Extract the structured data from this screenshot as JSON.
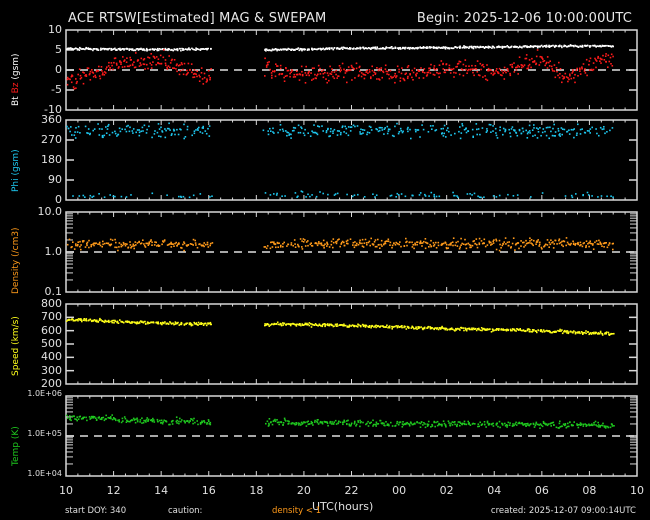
{
  "header": {
    "title": "ACE RTSW[Estimated] MAG & SWEPAM",
    "begin": "Begin: 2025-12-06 10:00:00UTC"
  },
  "footer": {
    "start_doy": "start DOY: 340",
    "caution": "caution:",
    "density_note": "density < 1",
    "created": "created: 2025-12-07 09:00:14UTC",
    "xlabel": "UTC(hours)"
  },
  "colors": {
    "bt": "#ffffff",
    "bz": "#ff1a1a",
    "phi": "#1ec8f0",
    "density": "#ff9a1a",
    "speed": "#ffff1a",
    "temp": "#1ec81e",
    "axis": "#d8d8d8",
    "caution": "#ff9a1a"
  },
  "chart_data": [
    {
      "type": "scatter",
      "panel": "mag",
      "ylabel_parts": [
        "Bt",
        "Bz",
        "(gsm)"
      ],
      "yticks": [
        "10",
        "5",
        "0",
        "-5",
        "-10"
      ],
      "ylim": [
        -10,
        10
      ],
      "reference_line": 0,
      "x_hours_from_start": [
        0,
        24
      ],
      "data_gap_hours": [
        [
          6.1,
          8.3
        ]
      ],
      "series": [
        {
          "name": "Bt",
          "color": "#ffffff",
          "trend": [
            [
              0,
              5.5
            ],
            [
              3,
              5.3
            ],
            [
              6,
              5.4
            ],
            [
              8.3,
              5.2
            ],
            [
              12,
              5.6
            ],
            [
              16,
              5.8
            ],
            [
              20,
              6.1
            ],
            [
              23,
              6.2
            ]
          ]
        },
        {
          "name": "Bz",
          "color": "#ff1a1a",
          "trend": [
            [
              0,
              -3
            ],
            [
              2,
              1.5
            ],
            [
              4,
              2.5
            ],
            [
              6,
              -2
            ],
            [
              8.3,
              1
            ],
            [
              10,
              -1.5
            ],
            [
              12,
              0
            ],
            [
              14,
              -1
            ],
            [
              16,
              1
            ],
            [
              18,
              -0.5
            ],
            [
              20,
              3
            ],
            [
              21,
              -2
            ],
            [
              22,
              1.5
            ],
            [
              23,
              3
            ]
          ]
        }
      ]
    },
    {
      "type": "scatter",
      "panel": "phi",
      "ylabel": "Phi (gsm)",
      "yticks": [
        "360",
        "270",
        "180",
        "90",
        "0"
      ],
      "ylim": [
        0,
        360
      ],
      "series": [
        {
          "name": "Phi",
          "color": "#1ec8f0",
          "clusters": [
            [
              315,
              30
            ],
            [
              20,
              20
            ]
          ]
        }
      ]
    },
    {
      "type": "scatter",
      "panel": "density",
      "ylabel": "Density (/cm3)",
      "yticks": [
        "10.0",
        "1.0",
        "0.1"
      ],
      "yscale": "log",
      "ylim": [
        0.1,
        10
      ],
      "reference_line": 1.0,
      "series": [
        {
          "name": "Density",
          "color": "#ff9a1a",
          "trend": [
            [
              0,
              1.6
            ],
            [
              4,
              1.7
            ],
            [
              8,
              1.5
            ],
            [
              12,
              1.8
            ],
            [
              16,
              1.6
            ],
            [
              20,
              1.7
            ],
            [
              23,
              1.6
            ]
          ]
        }
      ]
    },
    {
      "type": "scatter",
      "panel": "speed",
      "ylabel": "Speed (km/s)",
      "yticks": [
        "800",
        "700",
        "600",
        "500",
        "400",
        "300",
        "200"
      ],
      "ylim": [
        200,
        800
      ],
      "series": [
        {
          "name": "Speed",
          "color": "#ffff1a",
          "trend": [
            [
              0,
              690
            ],
            [
              4,
              660
            ],
            [
              8,
              655
            ],
            [
              12,
              645
            ],
            [
              16,
              620
            ],
            [
              20,
              605
            ],
            [
              23,
              580
            ]
          ]
        }
      ]
    },
    {
      "type": "scatter",
      "panel": "temp",
      "ylabel": "Temp (K)",
      "yticks": [
        "1.0E+06",
        "1.0E+05",
        "1.0E+04"
      ],
      "yscale": "log",
      "ylim": [
        10000,
        1000000
      ],
      "reference_line": 100000,
      "series": [
        {
          "name": "Temp",
          "color": "#1ec81e",
          "trend": [
            [
              0,
              300000
            ],
            [
              4,
              250000
            ],
            [
              8,
              230000
            ],
            [
              12,
              220000
            ],
            [
              16,
              210000
            ],
            [
              20,
              200000
            ],
            [
              23,
              190000
            ]
          ]
        }
      ]
    }
  ],
  "xaxis": {
    "ticks": [
      "10",
      "12",
      "14",
      "16",
      "18",
      "20",
      "22",
      "00",
      "02",
      "04",
      "06",
      "08",
      "10"
    ]
  }
}
